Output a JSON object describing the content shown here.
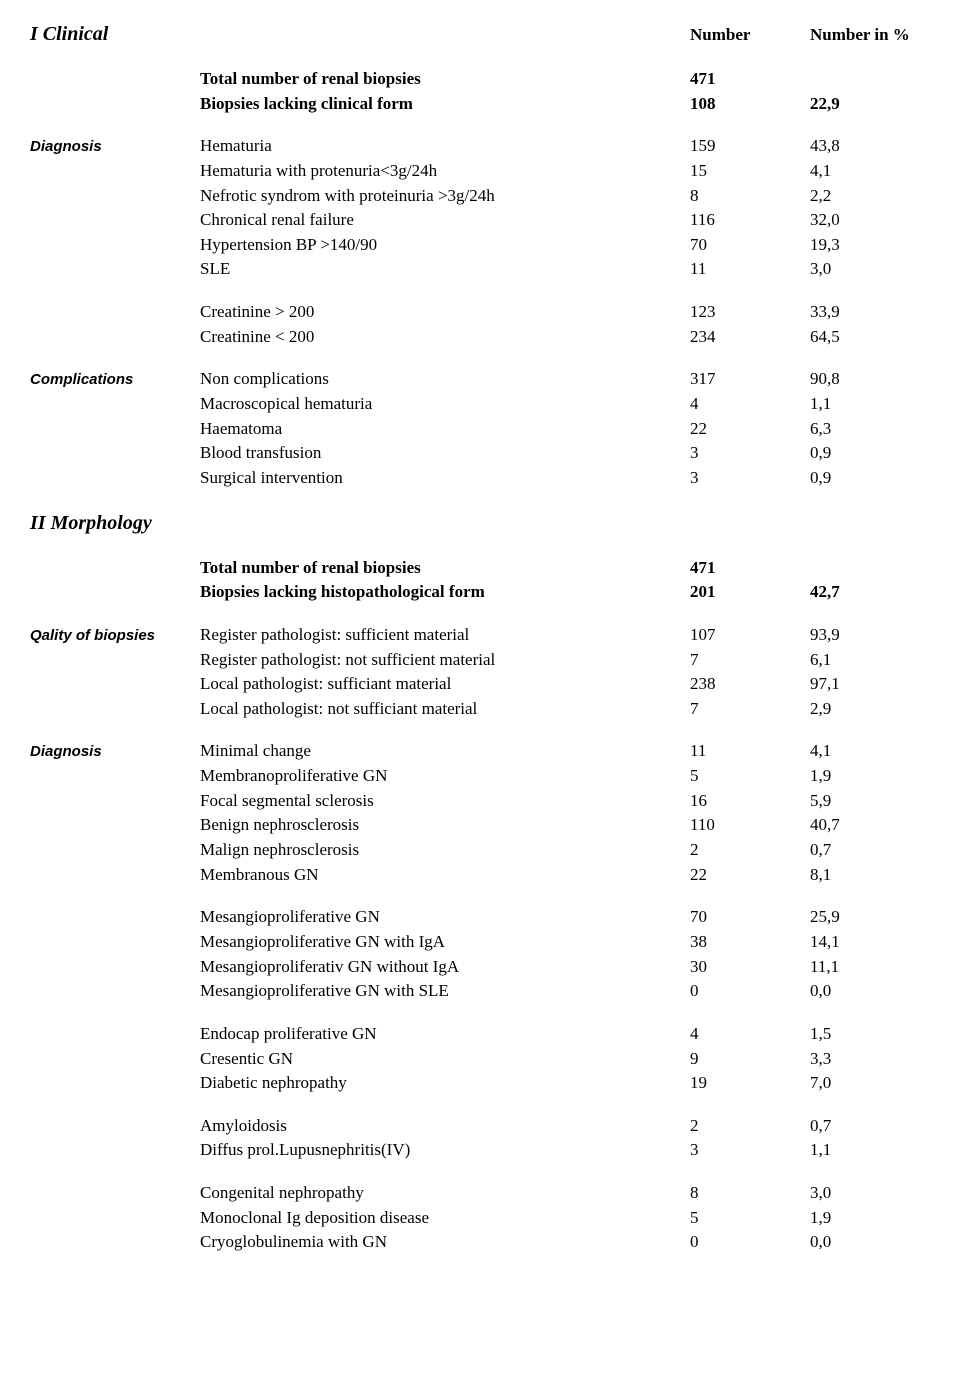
{
  "headers": {
    "section1": "I Clinical",
    "section2": "II Morphology",
    "number": "Number",
    "number_pct": "Number in %"
  },
  "clinical": {
    "total": {
      "label": "Total number of renal biopsies",
      "n": "471",
      "p": ""
    },
    "lacking": {
      "label": "Biopsies lacking clinical form",
      "n": "108",
      "p": "22,9"
    },
    "diagnosis_label": "Diagnosis",
    "diagnosis": [
      {
        "label": "Hematuria",
        "n": "159",
        "p": "43,8"
      },
      {
        "label": "Hematuria with  protenuria<3g/24h",
        "n": "15",
        "p": "4,1"
      },
      {
        "label": "Nefrotic syndrom with  proteinuria >3g/24h",
        "n": "8",
        "p": "2,2"
      },
      {
        "label": "Chronical renal failure",
        "n": "116",
        "p": "32,0"
      },
      {
        "label": "Hypertension BP >140/90",
        "n": "70",
        "p": "19,3"
      },
      {
        "label": "SLE",
        "n": "11",
        "p": "3,0"
      }
    ],
    "creatinine": [
      {
        "label": "Creatinine > 200",
        "n": "123",
        "p": "33,9"
      },
      {
        "label": "Creatinine < 200",
        "n": "234",
        "p": "64,5"
      }
    ],
    "complications_label": "Complications",
    "complications": [
      {
        "label": "Non complications",
        "n": "317",
        "p": "90,8"
      },
      {
        "label": "Macroscopical hematuria",
        "n": "4",
        "p": "1,1"
      },
      {
        "label": "Haematoma",
        "n": "22",
        "p": "6,3"
      },
      {
        "label": "Blood transfusion",
        "n": "3",
        "p": "0,9"
      },
      {
        "label": "Surgical intervention",
        "n": "3",
        "p": "0,9"
      }
    ]
  },
  "morphology": {
    "total": {
      "label": "Total number of renal biopsies",
      "n": "471",
      "p": ""
    },
    "lacking": {
      "label": "Biopsies lacking histopathological form",
      "n": "201",
      "p": "42,7"
    },
    "quality_label": "Qality of biopsies",
    "quality": [
      {
        "label": "Register pathologist: sufficient material",
        "n": "107",
        "p": "93,9"
      },
      {
        "label": "Register pathologist: not sufficient material",
        "n": "7",
        "p": "6,1"
      },
      {
        "label": "Local pathologist: sufficiant material",
        "n": "238",
        "p": "97,1"
      },
      {
        "label": "Local pathologist: not sufficiant material",
        "n": "7",
        "p": "2,9"
      }
    ],
    "diagnosis_label": "Diagnosis",
    "diag1": [
      {
        "label": "Minimal change",
        "n": "11",
        "p": "4,1"
      },
      {
        "label": "Membranoproliferative GN",
        "n": "5",
        "p": "1,9"
      },
      {
        "label": "Focal segmental sclerosis",
        "n": "16",
        "p": "5,9"
      },
      {
        "label": "Benign nephrosclerosis",
        "n": "110",
        "p": "40,7"
      },
      {
        "label": "Malign nephrosclerosis",
        "n": "2",
        "p": "0,7"
      },
      {
        "label": "Membranous GN",
        "n": "22",
        "p": "8,1"
      }
    ],
    "diag2": [
      {
        "label": "Mesangioproliferative GN",
        "n": "70",
        "p": "25,9"
      },
      {
        "label": "Mesangioproliferative GN with IgA",
        "n": "38",
        "p": "14,1"
      },
      {
        "label": "Mesangioproliferativ GN without  IgA",
        "n": "30",
        "p": "11,1"
      },
      {
        "label": "Mesangioproliferative GN with SLE",
        "n": "0",
        "p": "0,0"
      }
    ],
    "diag3": [
      {
        "label": "Endocap proliferative GN",
        "n": "4",
        "p": "1,5"
      },
      {
        "label": "Cresentic GN",
        "n": "9",
        "p": "3,3"
      },
      {
        "label": "Diabetic nephropathy",
        "n": "19",
        "p": "7,0"
      }
    ],
    "diag4": [
      {
        "label": "Amyloidosis",
        "n": "2",
        "p": "0,7"
      },
      {
        "label": "Diffus prol.Lupusnephritis(IV)",
        "n": "3",
        "p": "1,1"
      }
    ],
    "diag5": [
      {
        "label": "Congenital nephropathy",
        "n": "8",
        "p": "3,0"
      },
      {
        "label": "Monoclonal Ig deposition disease",
        "n": "5",
        "p": "1,9"
      },
      {
        "label": "Cryoglobulinemia with GN",
        "n": "0",
        "p": "0,0"
      }
    ]
  }
}
